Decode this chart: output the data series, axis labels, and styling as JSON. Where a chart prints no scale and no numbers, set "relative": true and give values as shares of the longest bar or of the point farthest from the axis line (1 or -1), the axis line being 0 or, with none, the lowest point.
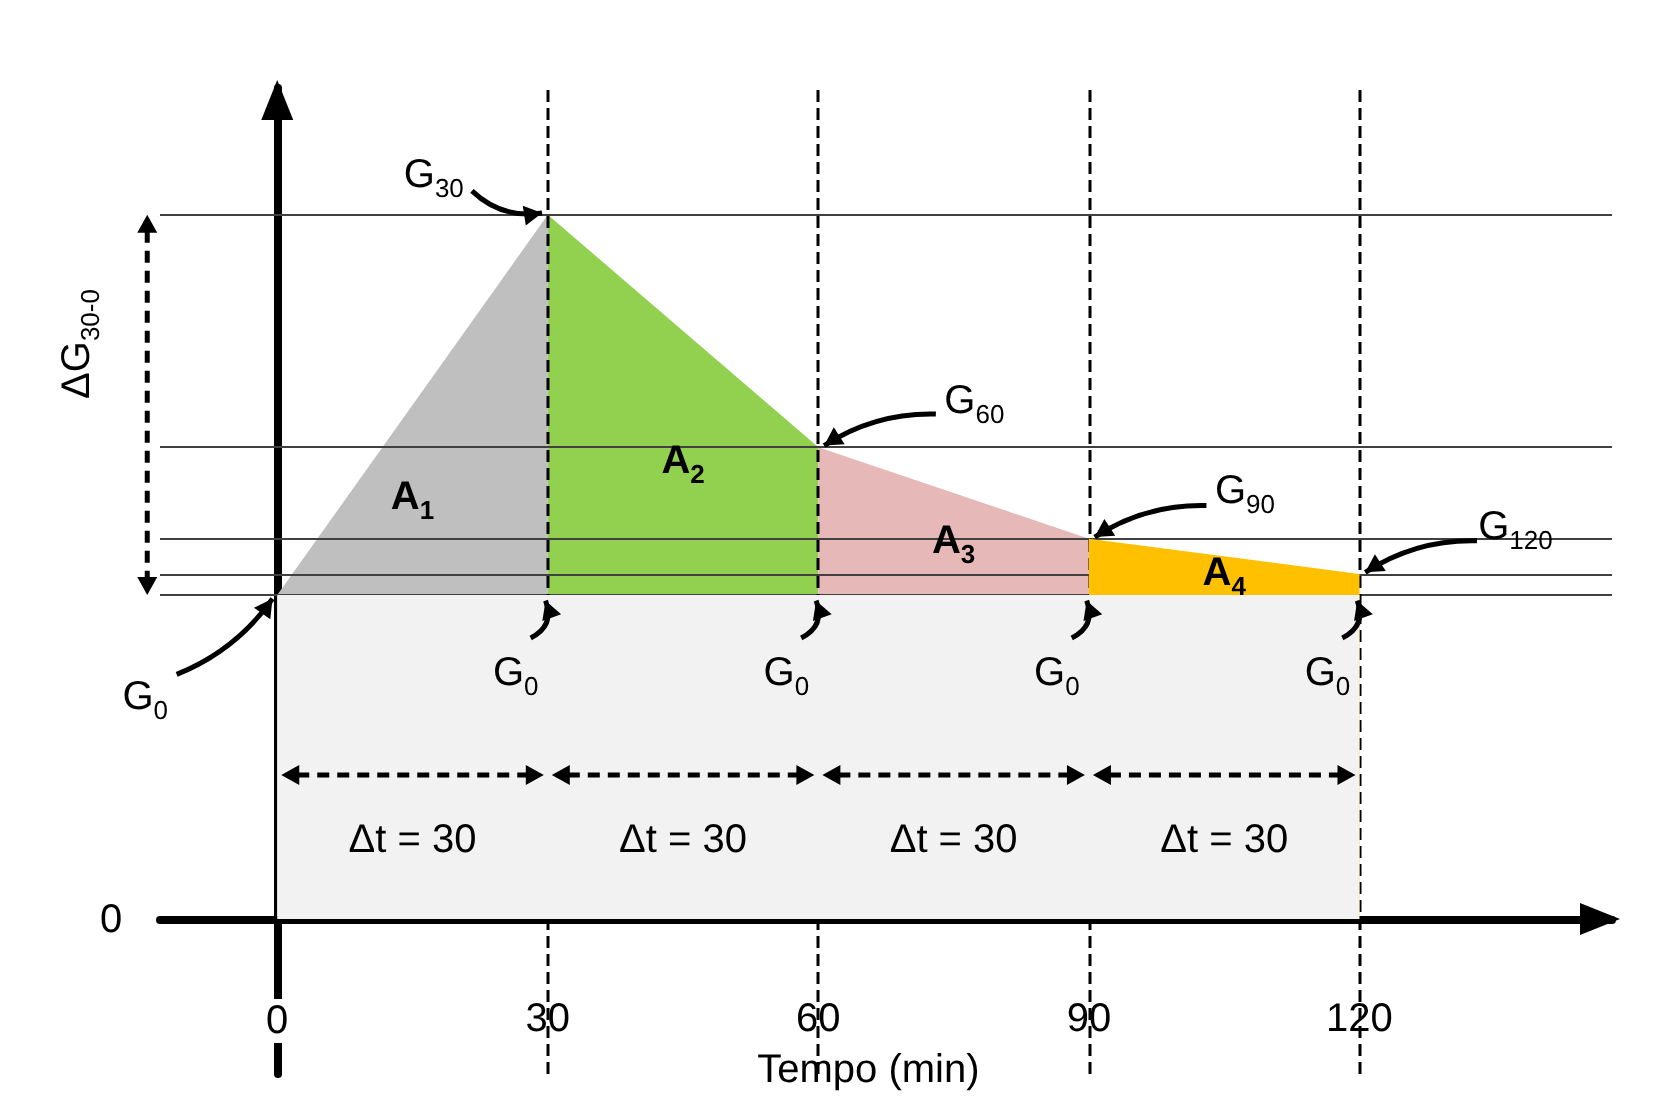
{
  "chart_data": {
    "type": "area",
    "relative": true,
    "xlabel": "Tempo (min)",
    "xlim": [
      -13,
      148
    ],
    "xticks": [
      0,
      30,
      60,
      90,
      120
    ],
    "series": [
      {
        "color": "#bfbfbf",
        "x": [
          0,
          30
        ],
        "values": [
          0.46,
          1
        ]
      },
      {
        "color": "#92d050",
        "x": [
          30,
          60
        ],
        "values": [
          1,
          0.67
        ]
      },
      {
        "color": "#e6b8b7",
        "x": [
          60,
          90
        ],
        "values": [
          0.67,
          0.54
        ]
      },
      {
        "color": "#ffc000",
        "x": [
          90,
          120
        ],
        "values": [
          0.54,
          0.49
        ]
      },
      {
        "color": "#f2f2f2",
        "x": [
          0,
          120
        ],
        "values": [
          0.46,
          0.46
        ]
      }
    ],
    "ref_lines": [
      {
        "axis": "y",
        "value": 1,
        "color": "#404040"
      },
      {
        "axis": "y",
        "value": 0.67,
        "color": "#404040"
      },
      {
        "axis": "y",
        "value": 0.54,
        "color": "#404040"
      },
      {
        "axis": "y",
        "value": 0.49,
        "color": "#404040"
      },
      {
        "axis": "y",
        "value": 0.46,
        "color": "#404040"
      },
      {
        "axis": "x",
        "value": 30,
        "color": "#000000",
        "line_style": "dashed"
      },
      {
        "axis": "x",
        "value": 60,
        "color": "#000000",
        "line_style": "dashed"
      },
      {
        "axis": "x",
        "value": 90,
        "color": "#000000",
        "line_style": "dashed"
      },
      {
        "axis": "x",
        "value": 120,
        "color": "#000000",
        "line_style": "dashed"
      }
    ],
    "annotations": [
      {
        "text": "G$_{30}$",
        "x": 30,
        "y": 1
      },
      {
        "text": "G$_{60}$",
        "x": 60,
        "y": 0.67
      },
      {
        "text": "G$_{90}$",
        "x": 90,
        "y": 0.54
      },
      {
        "text": "G$_{120}$",
        "x": 120,
        "y": 0.49
      },
      {
        "text": "G$_{0}$",
        "x": 0,
        "y": 0.46
      },
      {
        "text": "G$_{0}$",
        "x": 30,
        "y": 0.46
      },
      {
        "text": "G$_{0}$",
        "x": 60,
        "y": 0.46
      },
      {
        "text": "G$_{0}$",
        "x": 90,
        "y": 0.46
      },
      {
        "text": "G$_{0}$",
        "x": 120,
        "y": 0.46
      },
      "A$_{1}$",
      "A$_{2}$",
      "A$_{3}$",
      "A$_{4}$",
      "Δt = 30",
      "Δt = 30",
      "Δt = 30",
      "Δt = 30",
      "ΔG$_{30-0}$",
      "0"
    ]
  }
}
